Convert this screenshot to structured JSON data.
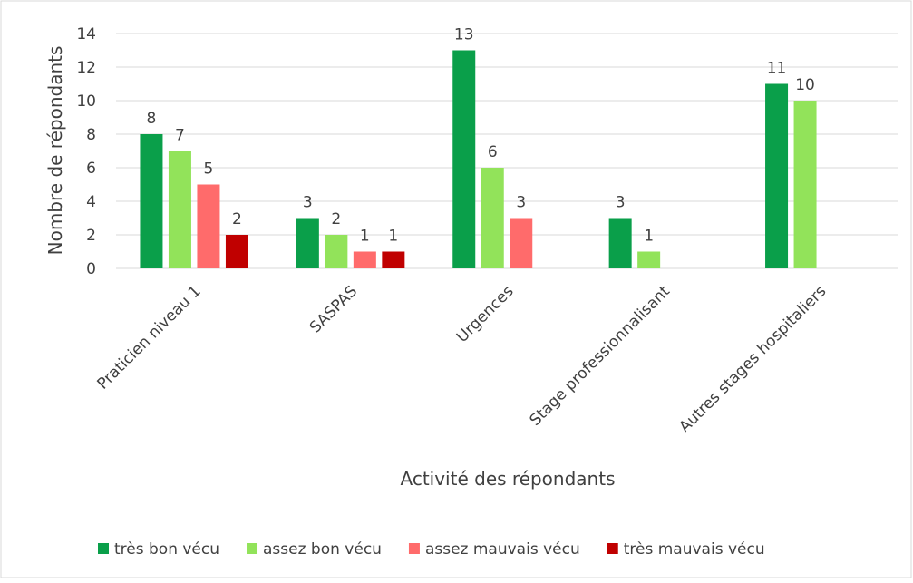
{
  "chart_data": {
    "type": "bar",
    "xlabel": "Activité des répondants",
    "ylabel": "Nombre de répondants",
    "categories": [
      "Praticien niveau 1",
      "SASPAS",
      "Urgences",
      "Stage professionnalisant",
      "Autres stages hospitaliers"
    ],
    "series": [
      {
        "name": "très bon vécu",
        "color": "#0a9f4a",
        "values": [
          8,
          3,
          13,
          3,
          11
        ]
      },
      {
        "name": "assez bon vécu",
        "color": "#92e35a",
        "values": [
          7,
          2,
          6,
          1,
          10
        ]
      },
      {
        "name": "assez mauvais vécu",
        "color": "#ff6b6b",
        "values": [
          5,
          1,
          3,
          null,
          null
        ]
      },
      {
        "name": "très mauvais vécu",
        "color": "#c00000",
        "values": [
          2,
          1,
          null,
          null,
          null
        ]
      }
    ],
    "ylim": [
      0,
      14
    ],
    "yticks": [
      0,
      2,
      4,
      6,
      8,
      10,
      12,
      14
    ],
    "grid": true,
    "legend": "bottom"
  }
}
